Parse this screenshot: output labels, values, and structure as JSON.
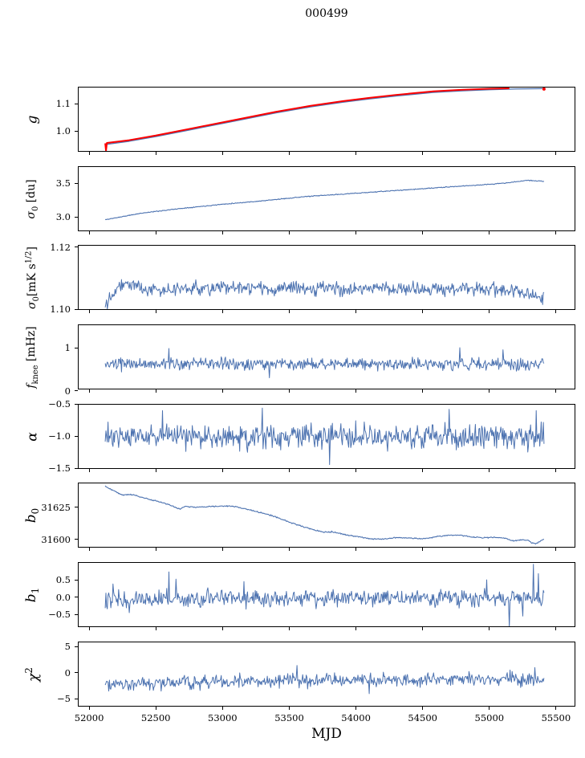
{
  "title": "000499",
  "chart_data": {
    "type": "line",
    "title": "000499",
    "xlabel": "MJD",
    "xlim": [
      51915,
      55645
    ],
    "x_data_range": [
      52120,
      55410
    ],
    "grid": false,
    "legend": "none",
    "line_color": "#4c72b0",
    "highlight_color": "#ff0000",
    "x_ticks": [
      {
        "v": 52000,
        "label": "52000"
      },
      {
        "v": 52500,
        "label": "52500"
      },
      {
        "v": 53000,
        "label": "53000"
      },
      {
        "v": 53500,
        "label": "53500"
      },
      {
        "v": 54000,
        "label": "54000"
      },
      {
        "v": 54500,
        "label": "54500"
      },
      {
        "v": 55000,
        "label": "55000"
      },
      {
        "v": 55500,
        "label": "55500"
      }
    ],
    "panels": [
      {
        "id": "g",
        "ylabel": "<i>g</i>",
        "ylabel_size": 17,
        "ylim": [
          0.9235,
          1.162
        ],
        "yticks": [
          {
            "v": 1.1,
            "label": "1.1"
          },
          {
            "v": 1.0,
            "label": "1.0"
          }
        ],
        "series": [
          {
            "name": "gain",
            "color": "#4c72b0",
            "width": 1.3,
            "noise": 0,
            "points": [
              [
                52120,
                0.95
              ],
              [
                52300,
                0.962
              ],
              [
                52500,
                0.979
              ],
              [
                52800,
                1.008
              ],
              [
                53100,
                1.037
              ],
              [
                53400,
                1.066
              ],
              [
                53660,
                1.088
              ],
              [
                53900,
                1.105
              ],
              [
                54100,
                1.117
              ],
              [
                54300,
                1.128
              ],
              [
                54580,
                1.141
              ],
              [
                54800,
                1.147
              ],
              [
                55000,
                1.151
              ],
              [
                55200,
                1.154
              ],
              [
                55410,
                1.155
              ]
            ]
          },
          {
            "name": "gain-smoothed",
            "color": "#ff0000",
            "width": 2.0,
            "noise": 0,
            "points": [
              [
                52120,
                0.9545
              ],
              [
                52126,
                0.927
              ],
              [
                52133,
                0.956
              ],
              [
                52300,
                0.966
              ],
              [
                52500,
                0.983
              ],
              [
                52800,
                1.012
              ],
              [
                53100,
                1.041
              ],
              [
                53400,
                1.07
              ],
              [
                53660,
                1.092
              ],
              [
                53900,
                1.109
              ],
              [
                54100,
                1.121
              ],
              [
                54300,
                1.132
              ],
              [
                54580,
                1.145
              ],
              [
                54800,
                1.151
              ],
              [
                55000,
                1.1545
              ],
              [
                55150,
                1.156
              ]
            ]
          },
          {
            "name": "gain-endpoint",
            "type": "dot",
            "color": "#ff0000",
            "x": 55410,
            "v": 1.1535,
            "r": 2
          }
        ]
      },
      {
        "id": "sigma0-du",
        "ylabel": "<i>σ</i><sub>0</sub> [du]",
        "ylim": [
          2.789,
          3.754
        ],
        "yticks": [
          {
            "v": 3.5,
            "label": "3.5"
          },
          {
            "v": 3.0,
            "label": "3.0"
          }
        ],
        "series": [
          {
            "name": "sigma0-du",
            "color": "#4c72b0",
            "width": 1.1,
            "noise": 0.004,
            "seed": 11,
            "points": [
              [
                52120,
                2.96
              ],
              [
                52400,
                3.06
              ],
              [
                52700,
                3.13
              ],
              [
                53000,
                3.19
              ],
              [
                53300,
                3.24
              ],
              [
                53600,
                3.3
              ],
              [
                53900,
                3.34
              ],
              [
                54200,
                3.38
              ],
              [
                54500,
                3.42
              ],
              [
                54800,
                3.46
              ],
              [
                55000,
                3.485
              ],
              [
                55150,
                3.51
              ],
              [
                55280,
                3.545
              ],
              [
                55410,
                3.53
              ]
            ]
          }
        ]
      },
      {
        "id": "sigma0-mks",
        "ylabel": "<i>σ</i><sub>0</sub>[mK s<sup>1/2</sup>]",
        "ylim": [
          1.0998,
          1.1207
        ],
        "yticks": [
          {
            "v": 1.12,
            "label": "1.12"
          },
          {
            "v": 1.1,
            "label": "1.10"
          }
        ],
        "series": [
          {
            "name": "sigma0-mks",
            "color": "#4c72b0",
            "width": 1.0,
            "noise": 0.0014,
            "seed": 22,
            "points": [
              [
                52120,
                1.1015
              ],
              [
                52180,
                1.106
              ],
              [
                52250,
                1.1085
              ],
              [
                52350,
                1.1075
              ],
              [
                52500,
                1.106
              ],
              [
                52700,
                1.1065
              ],
              [
                53000,
                1.107
              ],
              [
                53500,
                1.1065
              ],
              [
                54000,
                1.1068
              ],
              [
                54500,
                1.1065
              ],
              [
                55000,
                1.1065
              ],
              [
                55150,
                1.106
              ],
              [
                55300,
                1.1045
              ],
              [
                55410,
                1.1035
              ]
            ]
          }
        ]
      },
      {
        "id": "fknee",
        "ylabel": "<i>f</i><sub>knee</sub> [mHz]",
        "ylim": [
          0.03,
          1.54
        ],
        "yticks": [
          {
            "v": 1,
            "label": "1"
          },
          {
            "v": 0,
            "label": "0"
          }
        ],
        "series": [
          {
            "name": "fknee",
            "color": "#4c72b0",
            "width": 1.0,
            "noise": 0.09,
            "seed": 33,
            "points": [
              [
                52120,
                0.58
              ],
              [
                52250,
                0.62
              ],
              [
                55410,
                0.62
              ]
            ],
            "spikes": [
              [
                52600,
                0.98
              ],
              [
                53350,
                0.3
              ],
              [
                54780,
                1.0
              ],
              [
                55100,
                0.95
              ]
            ]
          }
        ]
      },
      {
        "id": "alpha",
        "ylabel": "<i>α</i>",
        "ylabel_size": 17,
        "ylim": [
          -1.5075,
          -0.495
        ],
        "yticks": [
          {
            "v": -0.5,
            "label": "−0.5"
          },
          {
            "v": -1.0,
            "label": "−1.0"
          },
          {
            "v": -1.5,
            "label": "−1.5"
          }
        ],
        "series": [
          {
            "name": "alpha",
            "color": "#4c72b0",
            "width": 1.0,
            "noise": 0.13,
            "seed": 44,
            "points": [
              [
                52120,
                -1.0
              ],
              [
                55410,
                -1.0
              ]
            ],
            "spikes": [
              [
                52550,
                -0.6
              ],
              [
                53300,
                -0.56
              ],
              [
                53800,
                -1.44
              ],
              [
                54700,
                -0.58
              ],
              [
                55350,
                -0.6
              ]
            ]
          }
        ]
      },
      {
        "id": "b0",
        "ylabel": "<i>b</i><sub>0</sub>",
        "ylabel_size": 17,
        "ylim": [
          31593.6,
          31644.2
        ],
        "yticks": [
          {
            "v": 31625,
            "label": "31625"
          },
          {
            "v": 31600,
            "label": "31600"
          }
        ],
        "series": [
          {
            "name": "b0",
            "color": "#4c72b0",
            "width": 1.1,
            "noise": 0.3,
            "seed": 55,
            "points": [
              [
                52120,
                31641.5
              ],
              [
                52200,
                31637.0
              ],
              [
                52250,
                31634.5
              ],
              [
                52320,
                31635.0
              ],
              [
                52400,
                31632.5
              ],
              [
                52500,
                31630.0
              ],
              [
                52600,
                31627.0
              ],
              [
                52680,
                31623.5
              ],
              [
                52720,
                31625.8
              ],
              [
                52800,
                31625.0
              ],
              [
                52900,
                31625.5
              ],
              [
                53000,
                31626.0
              ],
              [
                53100,
                31625.5
              ],
              [
                53200,
                31623.0
              ],
              [
                53300,
                31620.5
              ],
              [
                53400,
                31617.5
              ],
              [
                53500,
                31613.5
              ],
              [
                53600,
                31610.0
              ],
              [
                53700,
                31607.0
              ],
              [
                53760,
                31605.5
              ],
              [
                53820,
                31606.0
              ],
              [
                53900,
                31604.0
              ],
              [
                54000,
                31602.5
              ],
              [
                54100,
                31600.5
              ],
              [
                54200,
                31600.2
              ],
              [
                54300,
                31601.5
              ],
              [
                54400,
                31601.0
              ],
              [
                54500,
                31600.5
              ],
              [
                54600,
                31602.0
              ],
              [
                54700,
                31603.3
              ],
              [
                54780,
                31603.2
              ],
              [
                54860,
                31602.0
              ],
              [
                54950,
                31601.3
              ],
              [
                55050,
                31601.5
              ],
              [
                55120,
                31600.8
              ],
              [
                55180,
                31598.8
              ],
              [
                55240,
                31599.6
              ],
              [
                55290,
                31599.3
              ],
              [
                55320,
                31597.3
              ],
              [
                55350,
                31596.8
              ],
              [
                55380,
                31598.5
              ],
              [
                55410,
                31600.3
              ]
            ]
          }
        ]
      },
      {
        "id": "b1",
        "ylabel": "<i>b</i><sub>1</sub>",
        "ylabel_size": 17,
        "ylim": [
          -0.87,
          1.014
        ],
        "yticks": [
          {
            "v": 0.5,
            "label": "0.5"
          },
          {
            "v": 0.0,
            "label": "0.0"
          },
          {
            "v": -0.5,
            "label": "−0.5"
          }
        ],
        "series": [
          {
            "name": "b1",
            "color": "#4c72b0",
            "width": 1.0,
            "noise": 0.16,
            "seed": 66,
            "points": [
              [
                52120,
                -0.05
              ],
              [
                55410,
                -0.02
              ]
            ],
            "spikes": [
              [
                52180,
                0.38
              ],
              [
                52300,
                -0.45
              ],
              [
                52600,
                0.73
              ],
              [
                52650,
                0.52
              ],
              [
                53160,
                0.45
              ],
              [
                54980,
                0.5
              ],
              [
                55150,
                -0.88
              ],
              [
                55250,
                -0.55
              ],
              [
                55330,
                0.95
              ],
              [
                55365,
                0.68
              ]
            ]
          }
        ]
      },
      {
        "id": "chi2",
        "ylabel": "<i>χ</i><sup>2</sup>",
        "ylabel_size": 17,
        "ylim": [
          -6.48,
          5.98
        ],
        "yticks": [
          {
            "v": 5,
            "label": "5"
          },
          {
            "v": 0,
            "label": "0"
          },
          {
            "v": -5,
            "label": "−5"
          }
        ],
        "series": [
          {
            "name": "chi2",
            "color": "#4c72b0",
            "width": 1.0,
            "noise": 0.85,
            "seed": 77,
            "points": [
              [
                52120,
                -1.9
              ],
              [
                52400,
                -2.1
              ],
              [
                53000,
                -1.7
              ],
              [
                53600,
                -1.5
              ],
              [
                54200,
                -1.4
              ],
              [
                54800,
                -1.3
              ],
              [
                55410,
                -1.2
              ]
            ],
            "spikes": [
              [
                53560,
                1.4
              ],
              [
                54100,
                -4.0
              ],
              [
                55340,
                1.0
              ]
            ]
          }
        ]
      }
    ]
  }
}
